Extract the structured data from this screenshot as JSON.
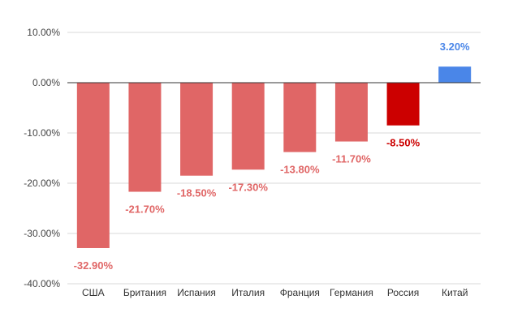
{
  "chart_data": {
    "type": "bar",
    "categories": [
      "США",
      "Британия",
      "Испания",
      "Италия",
      "Франция",
      "Германия",
      "Россия",
      "Китай"
    ],
    "values": [
      -32.9,
      -21.7,
      -18.5,
      -17.3,
      -13.8,
      -11.7,
      -8.5,
      3.2
    ],
    "data_labels": [
      "-32.90%",
      "-21.70%",
      "-18.50%",
      "-17.30%",
      "-13.80%",
      "-11.70%",
      "-8.50%",
      "3.20%"
    ],
    "bar_colors": [
      "#e06666",
      "#e06666",
      "#e06666",
      "#e06666",
      "#e06666",
      "#e06666",
      "#cc0000",
      "#4a86e8"
    ],
    "label_colors": [
      "#e06666",
      "#e06666",
      "#e06666",
      "#e06666",
      "#e06666",
      "#e06666",
      "#cc0000",
      "#4a86e8"
    ],
    "y_ticks": [
      10,
      0,
      -10,
      -20,
      -30,
      -40
    ],
    "y_tick_labels": [
      "10.00%",
      "0.00%",
      "-10.00%",
      "-20.00%",
      "-30.00%",
      "-40.00%"
    ],
    "ylim": [
      -40,
      10
    ],
    "title": "",
    "xlabel": "",
    "ylabel": "",
    "grid": true,
    "legend": "none"
  }
}
